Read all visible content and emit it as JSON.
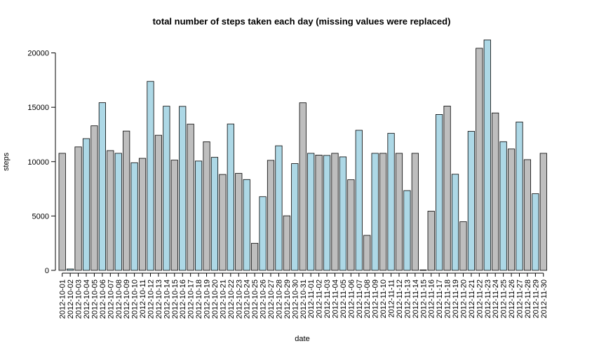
{
  "chart_data": {
    "type": "bar",
    "title": "total number of steps taken each day (missing values were replaced)",
    "xlabel": "date",
    "ylabel": "steps",
    "ylim": [
      0,
      21194
    ],
    "yticks": [
      0,
      5000,
      10000,
      15000,
      20000
    ],
    "grid": false,
    "legend": "none",
    "bar_colors": [
      "#bebebe",
      "#add8e6"
    ],
    "categories": [
      "2012-10-01",
      "2012-10-02",
      "2012-10-03",
      "2012-10-04",
      "2012-10-05",
      "2012-10-06",
      "2012-10-07",
      "2012-10-08",
      "2012-10-09",
      "2012-10-10",
      "2012-10-11",
      "2012-10-12",
      "2012-10-13",
      "2012-10-14",
      "2012-10-15",
      "2012-10-16",
      "2012-10-17",
      "2012-10-18",
      "2012-10-19",
      "2012-10-20",
      "2012-10-21",
      "2012-10-22",
      "2012-10-23",
      "2012-10-24",
      "2012-10-25",
      "2012-10-26",
      "2012-10-27",
      "2012-10-28",
      "2012-10-29",
      "2012-10-30",
      "2012-10-31",
      "2012-11-01",
      "2012-11-02",
      "2012-11-03",
      "2012-11-04",
      "2012-11-05",
      "2012-11-06",
      "2012-11-07",
      "2012-11-08",
      "2012-11-09",
      "2012-11-10",
      "2012-11-11",
      "2012-11-12",
      "2012-11-13",
      "2012-11-14",
      "2012-11-15",
      "2012-11-16",
      "2012-11-17",
      "2012-11-18",
      "2012-11-19",
      "2012-11-20",
      "2012-11-21",
      "2012-11-22",
      "2012-11-23",
      "2012-11-24",
      "2012-11-25",
      "2012-11-26",
      "2012-11-27",
      "2012-11-28",
      "2012-11-29",
      "2012-11-30"
    ],
    "values": [
      10766,
      126,
      11352,
      12116,
      13294,
      15420,
      11015,
      10766,
      12811,
      9900,
      10304,
      17382,
      12426,
      15098,
      10139,
      15084,
      13452,
      10056,
      11829,
      10395,
      8821,
      13460,
      8918,
      8355,
      2492,
      6778,
      10119,
      11458,
      5018,
      9819,
      15414,
      10766,
      10600,
      10571,
      10766,
      10439,
      8334,
      12883,
      3219,
      10766,
      10766,
      12608,
      10765,
      7336,
      10766,
      41,
      5441,
      14339,
      15110,
      8841,
      4472,
      12787,
      20427,
      21194,
      14478,
      11834,
      11162,
      13646,
      10183,
      7047,
      10766
    ]
  }
}
